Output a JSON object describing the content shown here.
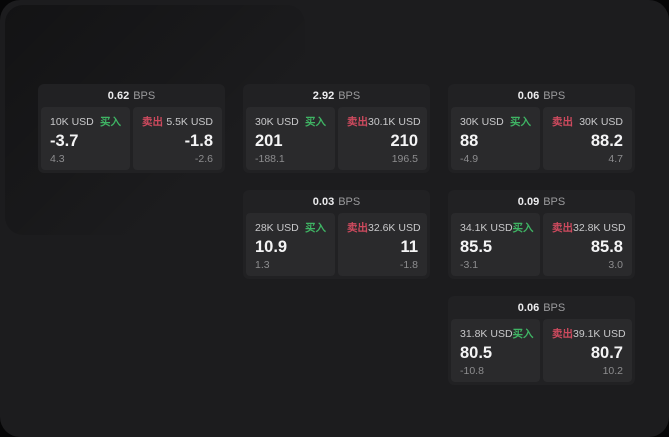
{
  "labels": {
    "buy": "买入",
    "sell": "卖出",
    "bps_unit": "BPS"
  },
  "colors": {
    "surface": "#1c1c1e",
    "card": "#212123",
    "panel": "#2a2a2c",
    "buy_green": "#3fb464",
    "sell_red": "#ce4a5e",
    "value_white": "#f4f4f5",
    "muted_gray": "#8d8d8f"
  },
  "cards": [
    {
      "bps": "0.62",
      "buy": {
        "amount": "10K USD",
        "value": "-3.7",
        "sub": "4.3"
      },
      "sell": {
        "amount": "5.5K USD",
        "value": "-1.8",
        "sub": "-2.6"
      }
    },
    {
      "bps": "2.92",
      "buy": {
        "amount": "30K USD",
        "value": "201",
        "sub": "-188.1"
      },
      "sell": {
        "amount": "30.1K USD",
        "value": "210",
        "sub": "196.5"
      }
    },
    {
      "bps": "0.06",
      "buy": {
        "amount": "30K USD",
        "value": "88",
        "sub": "-4.9"
      },
      "sell": {
        "amount": "30K USD",
        "value": "88.2",
        "sub": "4.7"
      }
    },
    {
      "bps": "0.03",
      "buy": {
        "amount": "28K USD",
        "value": "10.9",
        "sub": "1.3"
      },
      "sell": {
        "amount": "32.6K USD",
        "value": "11",
        "sub": "-1.8"
      }
    },
    {
      "bps": "0.09",
      "buy": {
        "amount": "34.1K USD",
        "value": "85.5",
        "sub": "-3.1"
      },
      "sell": {
        "amount": "32.8K USD",
        "value": "85.8",
        "sub": "3.0"
      }
    },
    {
      "bps": "0.06",
      "buy": {
        "amount": "31.8K USD",
        "value": "80.5",
        "sub": "-10.8"
      },
      "sell": {
        "amount": "39.1K USD",
        "value": "80.7",
        "sub": "10.2"
      }
    }
  ]
}
